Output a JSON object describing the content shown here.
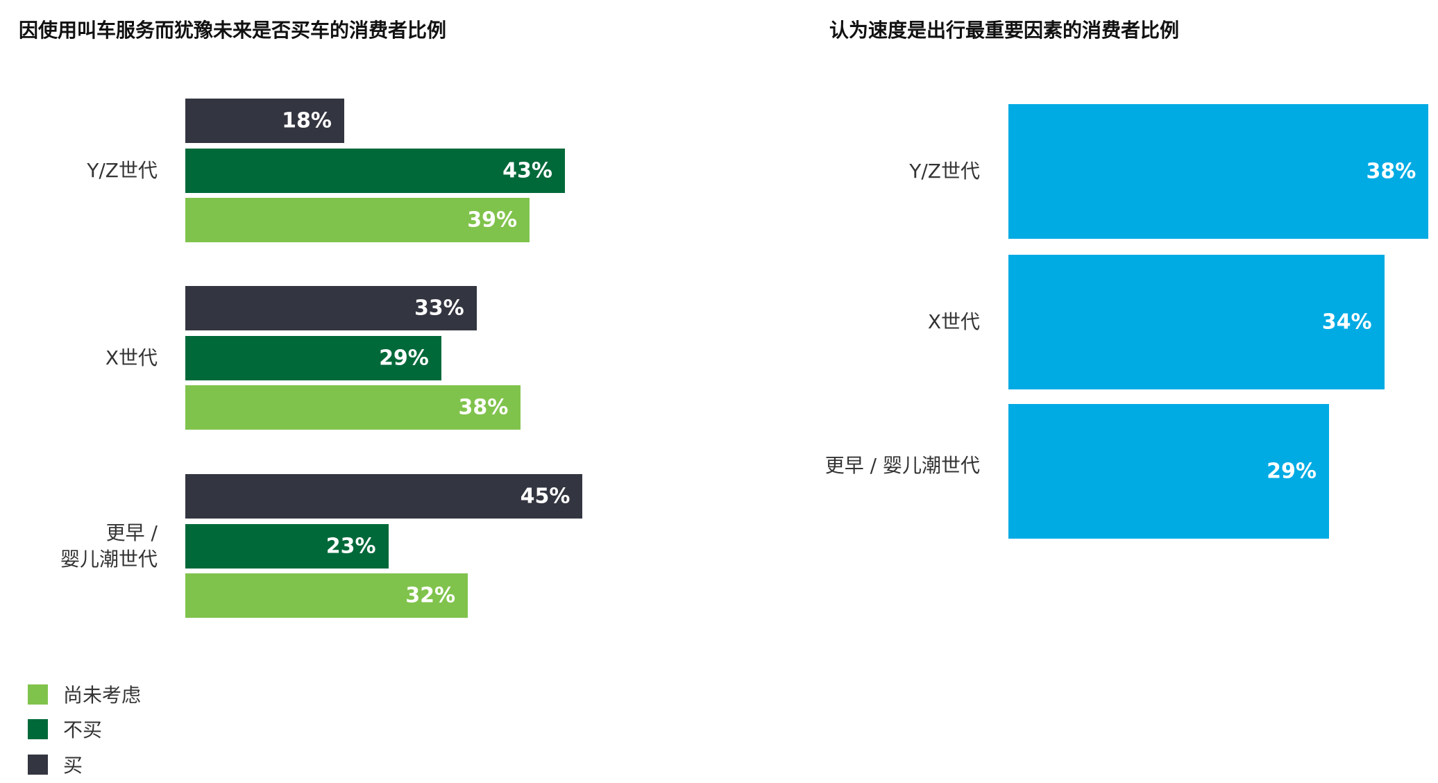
{
  "chart_data": [
    {
      "type": "bar",
      "orientation": "horizontal",
      "title": "因使用叫车服务而犹豫未来是否买车的消费者比例",
      "categories": [
        "Y/Z世代",
        "X世代",
        "更早／婴儿潮世代"
      ],
      "category_lines": [
        [
          "Y/Z世代"
        ],
        [
          "X世代"
        ],
        [
          "更早 /",
          "婴儿潮世代"
        ]
      ],
      "series": [
        {
          "name": "买",
          "color": "#333540",
          "values": [
            18,
            33,
            45
          ],
          "labels": [
            "18%",
            "33%",
            "45%"
          ]
        },
        {
          "name": "不买",
          "color": "#00693a",
          "values": [
            43,
            29,
            23
          ],
          "labels": [
            "43%",
            "29%",
            "23%"
          ]
        },
        {
          "name": "尚未考虑",
          "color": "#80c34c",
          "values": [
            39,
            38,
            32
          ],
          "labels": [
            "39%",
            "38%",
            "32%"
          ]
        }
      ],
      "legend": {
        "placement": "bottom-left",
        "order": [
          "尚未考虑",
          "不买",
          "买"
        ]
      },
      "grid": false,
      "axes_visible": false
    },
    {
      "type": "bar",
      "orientation": "horizontal",
      "title": "认为速度是出行最重要因素的消费者比例",
      "categories": [
        "Y/Z世代",
        "X世代",
        "更早／婴儿潮世代"
      ],
      "category_labels": [
        "Y/Z世代",
        "X世代",
        "更早 / 婴儿潮世代"
      ],
      "series": [
        {
          "color": "#00abe4",
          "values": [
            38,
            34,
            29
          ],
          "labels": [
            "38%",
            "34%",
            "29%"
          ]
        }
      ],
      "grid": false,
      "axes_visible": false
    }
  ]
}
